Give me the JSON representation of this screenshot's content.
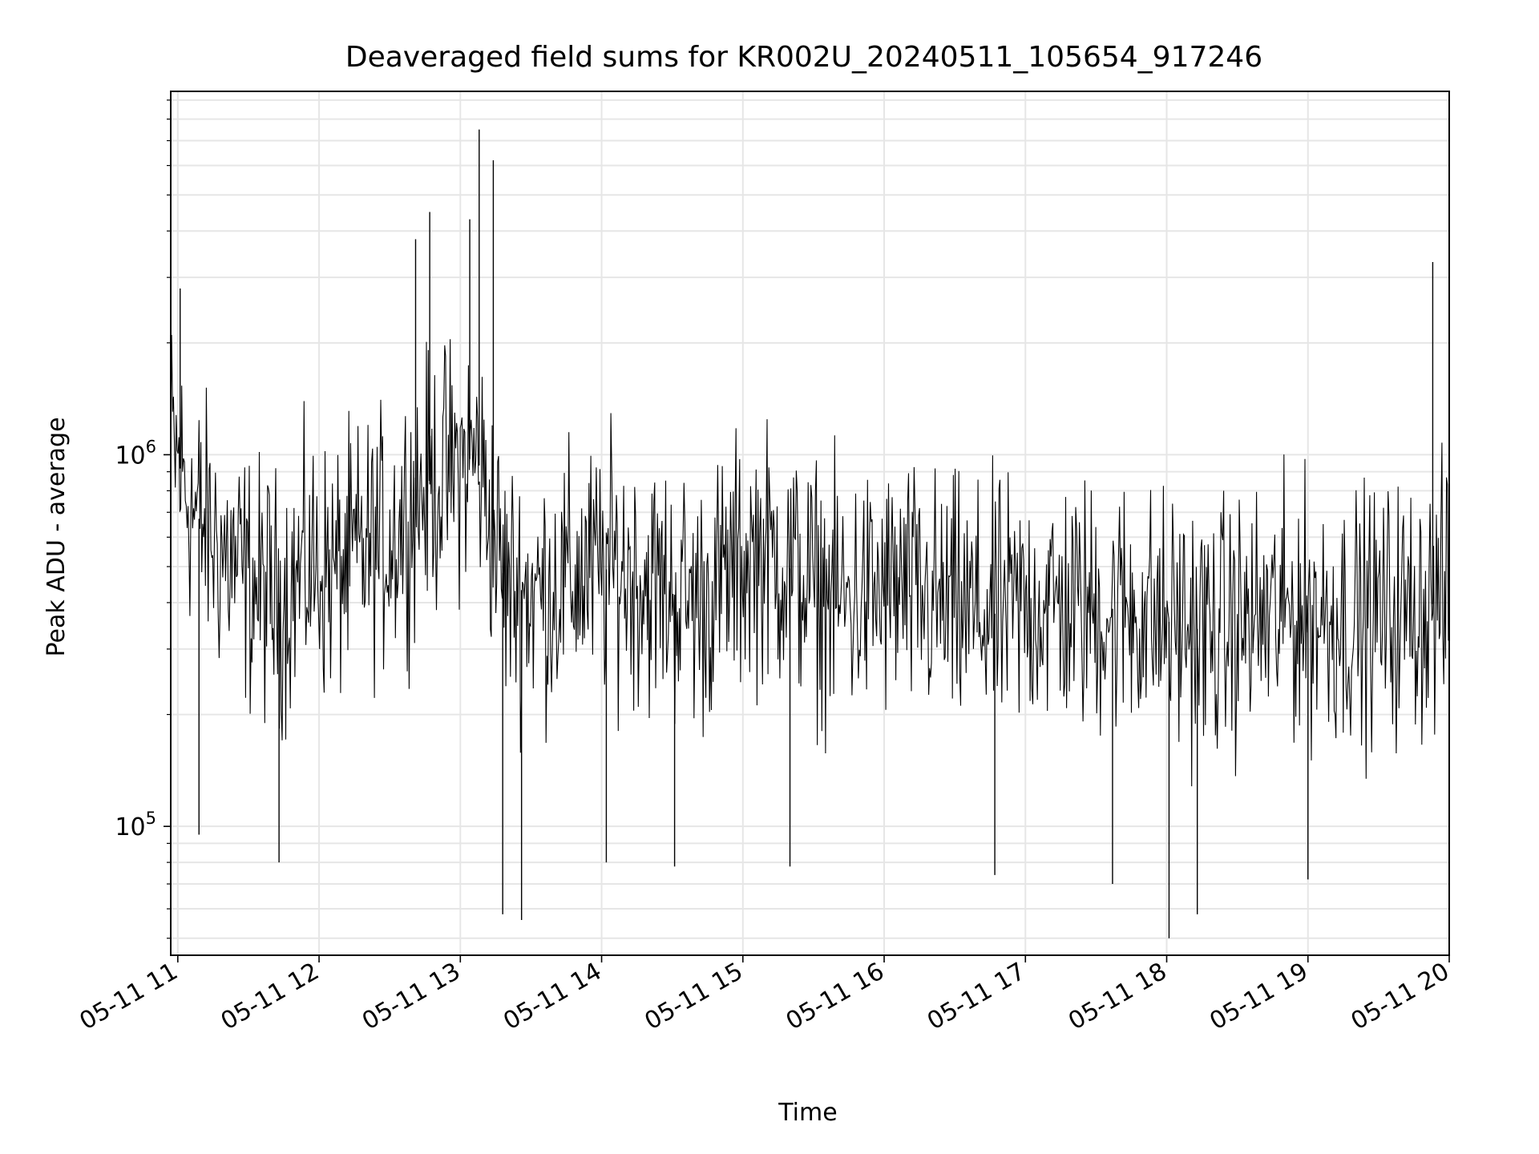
{
  "chart_data": {
    "type": "line",
    "title": "Deaveraged field sums for KR002U_20240511_105654_917246",
    "xlabel": "Time",
    "ylabel": "Peak ADU - average",
    "y_scale": "log",
    "ylim": [
      45000,
      9500000
    ],
    "xlim": [
      "2024-05-11 10:57",
      "2024-05-11 20:00"
    ],
    "grid": true,
    "x_ticks": [
      {
        "value": "2024-05-11 11:00",
        "label": "05-11 11"
      },
      {
        "value": "2024-05-11 12:00",
        "label": "05-11 12"
      },
      {
        "value": "2024-05-11 13:00",
        "label": "05-11 13"
      },
      {
        "value": "2024-05-11 14:00",
        "label": "05-11 14"
      },
      {
        "value": "2024-05-11 15:00",
        "label": "05-11 15"
      },
      {
        "value": "2024-05-11 16:00",
        "label": "05-11 16"
      },
      {
        "value": "2024-05-11 17:00",
        "label": "05-11 17"
      },
      {
        "value": "2024-05-11 18:00",
        "label": "05-11 18"
      },
      {
        "value": "2024-05-11 19:00",
        "label": "05-11 19"
      },
      {
        "value": "2024-05-11 20:00",
        "label": "05-11 20"
      }
    ],
    "y_ticks": [
      {
        "value": 100000,
        "base": "10",
        "exp": "5"
      },
      {
        "value": 1000000,
        "base": "10",
        "exp": "6"
      }
    ],
    "series": [
      {
        "color": "#000000",
        "x": [
          "2024-05-11 10:57",
          "2024-05-11 11:07",
          "2024-05-11 11:19",
          "2024-05-11 11:31",
          "2024-05-11 11:43",
          "2024-05-11 11:55",
          "2024-05-11 12:07",
          "2024-05-11 12:19",
          "2024-05-11 12:31",
          "2024-05-11 12:43",
          "2024-05-11 12:55",
          "2024-05-11 13:07",
          "2024-05-11 13:19",
          "2024-05-11 13:31",
          "2024-05-11 13:43",
          "2024-05-11 13:55",
          "2024-05-11 14:07",
          "2024-05-11 14:19",
          "2024-05-11 14:31",
          "2024-05-11 14:43",
          "2024-05-11 14:55",
          "2024-05-11 15:07",
          "2024-05-11 15:19",
          "2024-05-11 15:31",
          "2024-05-11 15:43",
          "2024-05-11 15:55",
          "2024-05-11 16:07",
          "2024-05-11 16:19",
          "2024-05-11 16:31",
          "2024-05-11 16:43",
          "2024-05-11 16:55",
          "2024-05-11 17:07",
          "2024-05-11 17:19",
          "2024-05-11 17:31",
          "2024-05-11 17:43",
          "2024-05-11 17:55",
          "2024-05-11 18:07",
          "2024-05-11 18:19",
          "2024-05-11 18:31",
          "2024-05-11 18:43",
          "2024-05-11 18:55",
          "2024-05-11 19:07",
          "2024-05-11 19:19",
          "2024-05-11 19:31",
          "2024-05-11 19:43",
          "2024-05-11 19:55",
          "2024-05-11 20:00"
        ],
        "y": [
          1100000,
          700000,
          550000,
          450000,
          400000,
          500000,
          480000,
          550000,
          600000,
          800000,
          900000,
          1000000,
          450000,
          420000,
          450000,
          480000,
          500000,
          450000,
          420000,
          400000,
          480000,
          550000,
          500000,
          430000,
          400000,
          420000,
          430000,
          400000,
          380000,
          370000,
          380000,
          400000,
          390000,
          380000,
          390000,
          360000,
          350000,
          330000,
          350000,
          360000,
          380000,
          370000,
          360000,
          370000,
          380000,
          400000,
          420000
        ]
      }
    ],
    "spikes": [
      {
        "x": "2024-05-11 11:01",
        "y": 2800000
      },
      {
        "x": "2024-05-11 11:09",
        "y": 95000
      },
      {
        "x": "2024-05-11 11:43",
        "y": 80000
      },
      {
        "x": "2024-05-11 12:41",
        "y": 3800000
      },
      {
        "x": "2024-05-11 12:47",
        "y": 4500000
      },
      {
        "x": "2024-05-11 13:04",
        "y": 4300000
      },
      {
        "x": "2024-05-11 13:08",
        "y": 7500000
      },
      {
        "x": "2024-05-11 13:14",
        "y": 6200000
      },
      {
        "x": "2024-05-11 13:18",
        "y": 58000
      },
      {
        "x": "2024-05-11 13:26",
        "y": 56000
      },
      {
        "x": "2024-05-11 14:02",
        "y": 80000
      },
      {
        "x": "2024-05-11 14:31",
        "y": 78000
      },
      {
        "x": "2024-05-11 15:20",
        "y": 78000
      },
      {
        "x": "2024-05-11 16:47",
        "y": 74000
      },
      {
        "x": "2024-05-11 17:37",
        "y": 70000
      },
      {
        "x": "2024-05-11 18:01",
        "y": 50000
      },
      {
        "x": "2024-05-11 18:13",
        "y": 58000
      },
      {
        "x": "2024-05-11 19:00",
        "y": 72000
      },
      {
        "x": "2024-05-11 19:53",
        "y": 3300000
      }
    ]
  }
}
